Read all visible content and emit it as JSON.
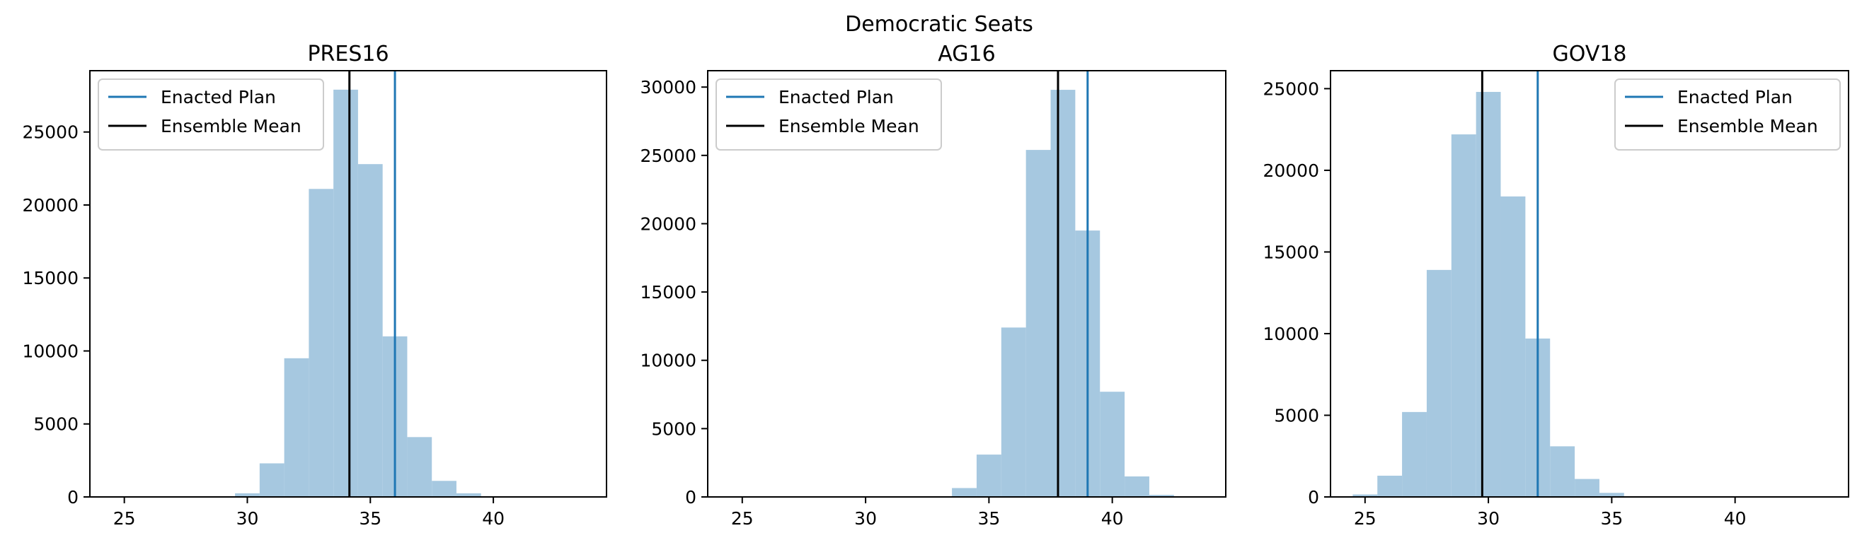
{
  "figure_title": "Democratic Seats",
  "colors": {
    "bar": "#a6c8e0",
    "enacted": "#1f77b4",
    "mean": "#000000",
    "axis": "#000000",
    "legend_border": "#cccccc"
  },
  "chart_data": [
    {
      "type": "bar",
      "title": "PRES16",
      "xlabel": "",
      "ylabel": "",
      "xlim": [
        23.6,
        44.6
      ],
      "ylim": [
        0,
        29200
      ],
      "xticks": [
        25,
        30,
        35,
        40
      ],
      "yticks": [
        0,
        5000,
        10000,
        15000,
        20000,
        25000
      ],
      "legend_position": "top-left",
      "grid": false,
      "bins": [
        {
          "x0": 29.5,
          "x1": 30.5,
          "count": 250
        },
        {
          "x0": 30.5,
          "x1": 31.5,
          "count": 2300
        },
        {
          "x0": 31.5,
          "x1": 32.5,
          "count": 9500
        },
        {
          "x0": 32.5,
          "x1": 33.5,
          "count": 21100
        },
        {
          "x0": 33.5,
          "x1": 34.5,
          "count": 27900
        },
        {
          "x0": 34.5,
          "x1": 35.5,
          "count": 22800
        },
        {
          "x0": 35.5,
          "x1": 36.5,
          "count": 11000
        },
        {
          "x0": 36.5,
          "x1": 37.5,
          "count": 4100
        },
        {
          "x0": 37.5,
          "x1": 38.5,
          "count": 1100
        },
        {
          "x0": 38.5,
          "x1": 39.5,
          "count": 250
        }
      ],
      "lines": [
        {
          "name": "Enacted Plan",
          "x": 36,
          "color_key": "enacted"
        },
        {
          "name": "Ensemble Mean",
          "x": 34.15,
          "color_key": "mean"
        }
      ]
    },
    {
      "type": "bar",
      "title": "AG16",
      "xlabel": "",
      "ylabel": "",
      "xlim": [
        23.6,
        44.6
      ],
      "ylim": [
        0,
        31200
      ],
      "xticks": [
        25,
        30,
        35,
        40
      ],
      "yticks": [
        0,
        5000,
        10000,
        15000,
        20000,
        25000,
        30000
      ],
      "legend_position": "top-left",
      "grid": false,
      "bins": [
        {
          "x0": 33.5,
          "x1": 34.5,
          "count": 650
        },
        {
          "x0": 34.5,
          "x1": 35.5,
          "count": 3100
        },
        {
          "x0": 35.5,
          "x1": 36.5,
          "count": 12400
        },
        {
          "x0": 36.5,
          "x1": 37.5,
          "count": 25400
        },
        {
          "x0": 37.5,
          "x1": 38.5,
          "count": 29800
        },
        {
          "x0": 38.5,
          "x1": 39.5,
          "count": 19500
        },
        {
          "x0": 39.5,
          "x1": 40.5,
          "count": 7700
        },
        {
          "x0": 40.5,
          "x1": 41.5,
          "count": 1500
        },
        {
          "x0": 41.5,
          "x1": 42.5,
          "count": 150
        }
      ],
      "lines": [
        {
          "name": "Enacted Plan",
          "x": 39,
          "color_key": "enacted"
        },
        {
          "name": "Ensemble Mean",
          "x": 37.8,
          "color_key": "mean"
        }
      ]
    },
    {
      "type": "bar",
      "title": "GOV18",
      "xlabel": "",
      "ylabel": "",
      "xlim": [
        23.6,
        44.6
      ],
      "ylim": [
        0,
        26100
      ],
      "xticks": [
        25,
        30,
        35,
        40
      ],
      "yticks": [
        0,
        5000,
        10000,
        15000,
        20000,
        25000
      ],
      "legend_position": "top-right",
      "grid": false,
      "bins": [
        {
          "x0": 24.5,
          "x1": 25.5,
          "count": 150
        },
        {
          "x0": 25.5,
          "x1": 26.5,
          "count": 1300
        },
        {
          "x0": 26.5,
          "x1": 27.5,
          "count": 5200
        },
        {
          "x0": 27.5,
          "x1": 28.5,
          "count": 13900
        },
        {
          "x0": 28.5,
          "x1": 29.5,
          "count": 22200
        },
        {
          "x0": 29.5,
          "x1": 30.5,
          "count": 24800
        },
        {
          "x0": 30.5,
          "x1": 31.5,
          "count": 18400
        },
        {
          "x0": 31.5,
          "x1": 32.5,
          "count": 9700
        },
        {
          "x0": 32.5,
          "x1": 33.5,
          "count": 3100
        },
        {
          "x0": 33.5,
          "x1": 34.5,
          "count": 1100
        },
        {
          "x0": 34.5,
          "x1": 35.5,
          "count": 250
        }
      ],
      "lines": [
        {
          "name": "Enacted Plan",
          "x": 32,
          "color_key": "enacted"
        },
        {
          "name": "Ensemble Mean",
          "x": 29.75,
          "color_key": "mean"
        }
      ]
    }
  ]
}
